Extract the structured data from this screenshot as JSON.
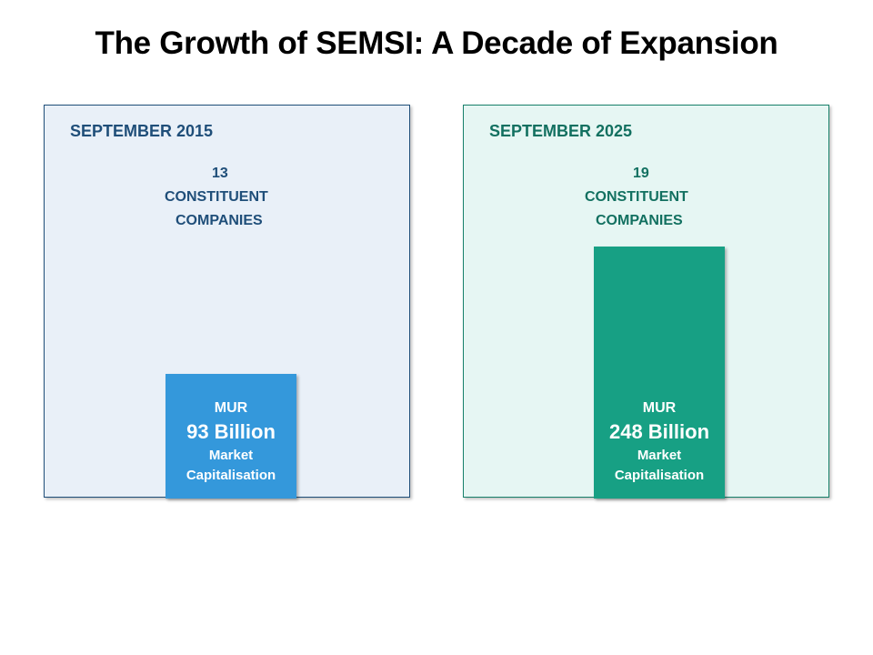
{
  "title": "The Growth of SEMSI: A Decade of Expansion",
  "colors": {
    "panel_2015": "#e9f0f8",
    "bar_2015": "#3498db",
    "text_2015": "#1f4e79",
    "panel_2025": "#e6f6f3",
    "bar_2025": "#17a084",
    "text_2025": "#127060"
  },
  "panels": [
    {
      "date": "SEPTEMBER 2015",
      "count": "13",
      "count_label_1": "CONSTITUENT",
      "count_label_2": "COMPANIES",
      "currency": "MUR",
      "value": "93 Billion",
      "value_label_1": "Market",
      "value_label_2": "Capitalisation"
    },
    {
      "date": "SEPTEMBER 2025",
      "count": "19",
      "count_label_1": "CONSTITUENT",
      "count_label_2": "COMPANIES",
      "currency": "MUR",
      "value": "248 Billion",
      "value_label_1": "Market",
      "value_label_2": "Capitalisation"
    }
  ]
}
